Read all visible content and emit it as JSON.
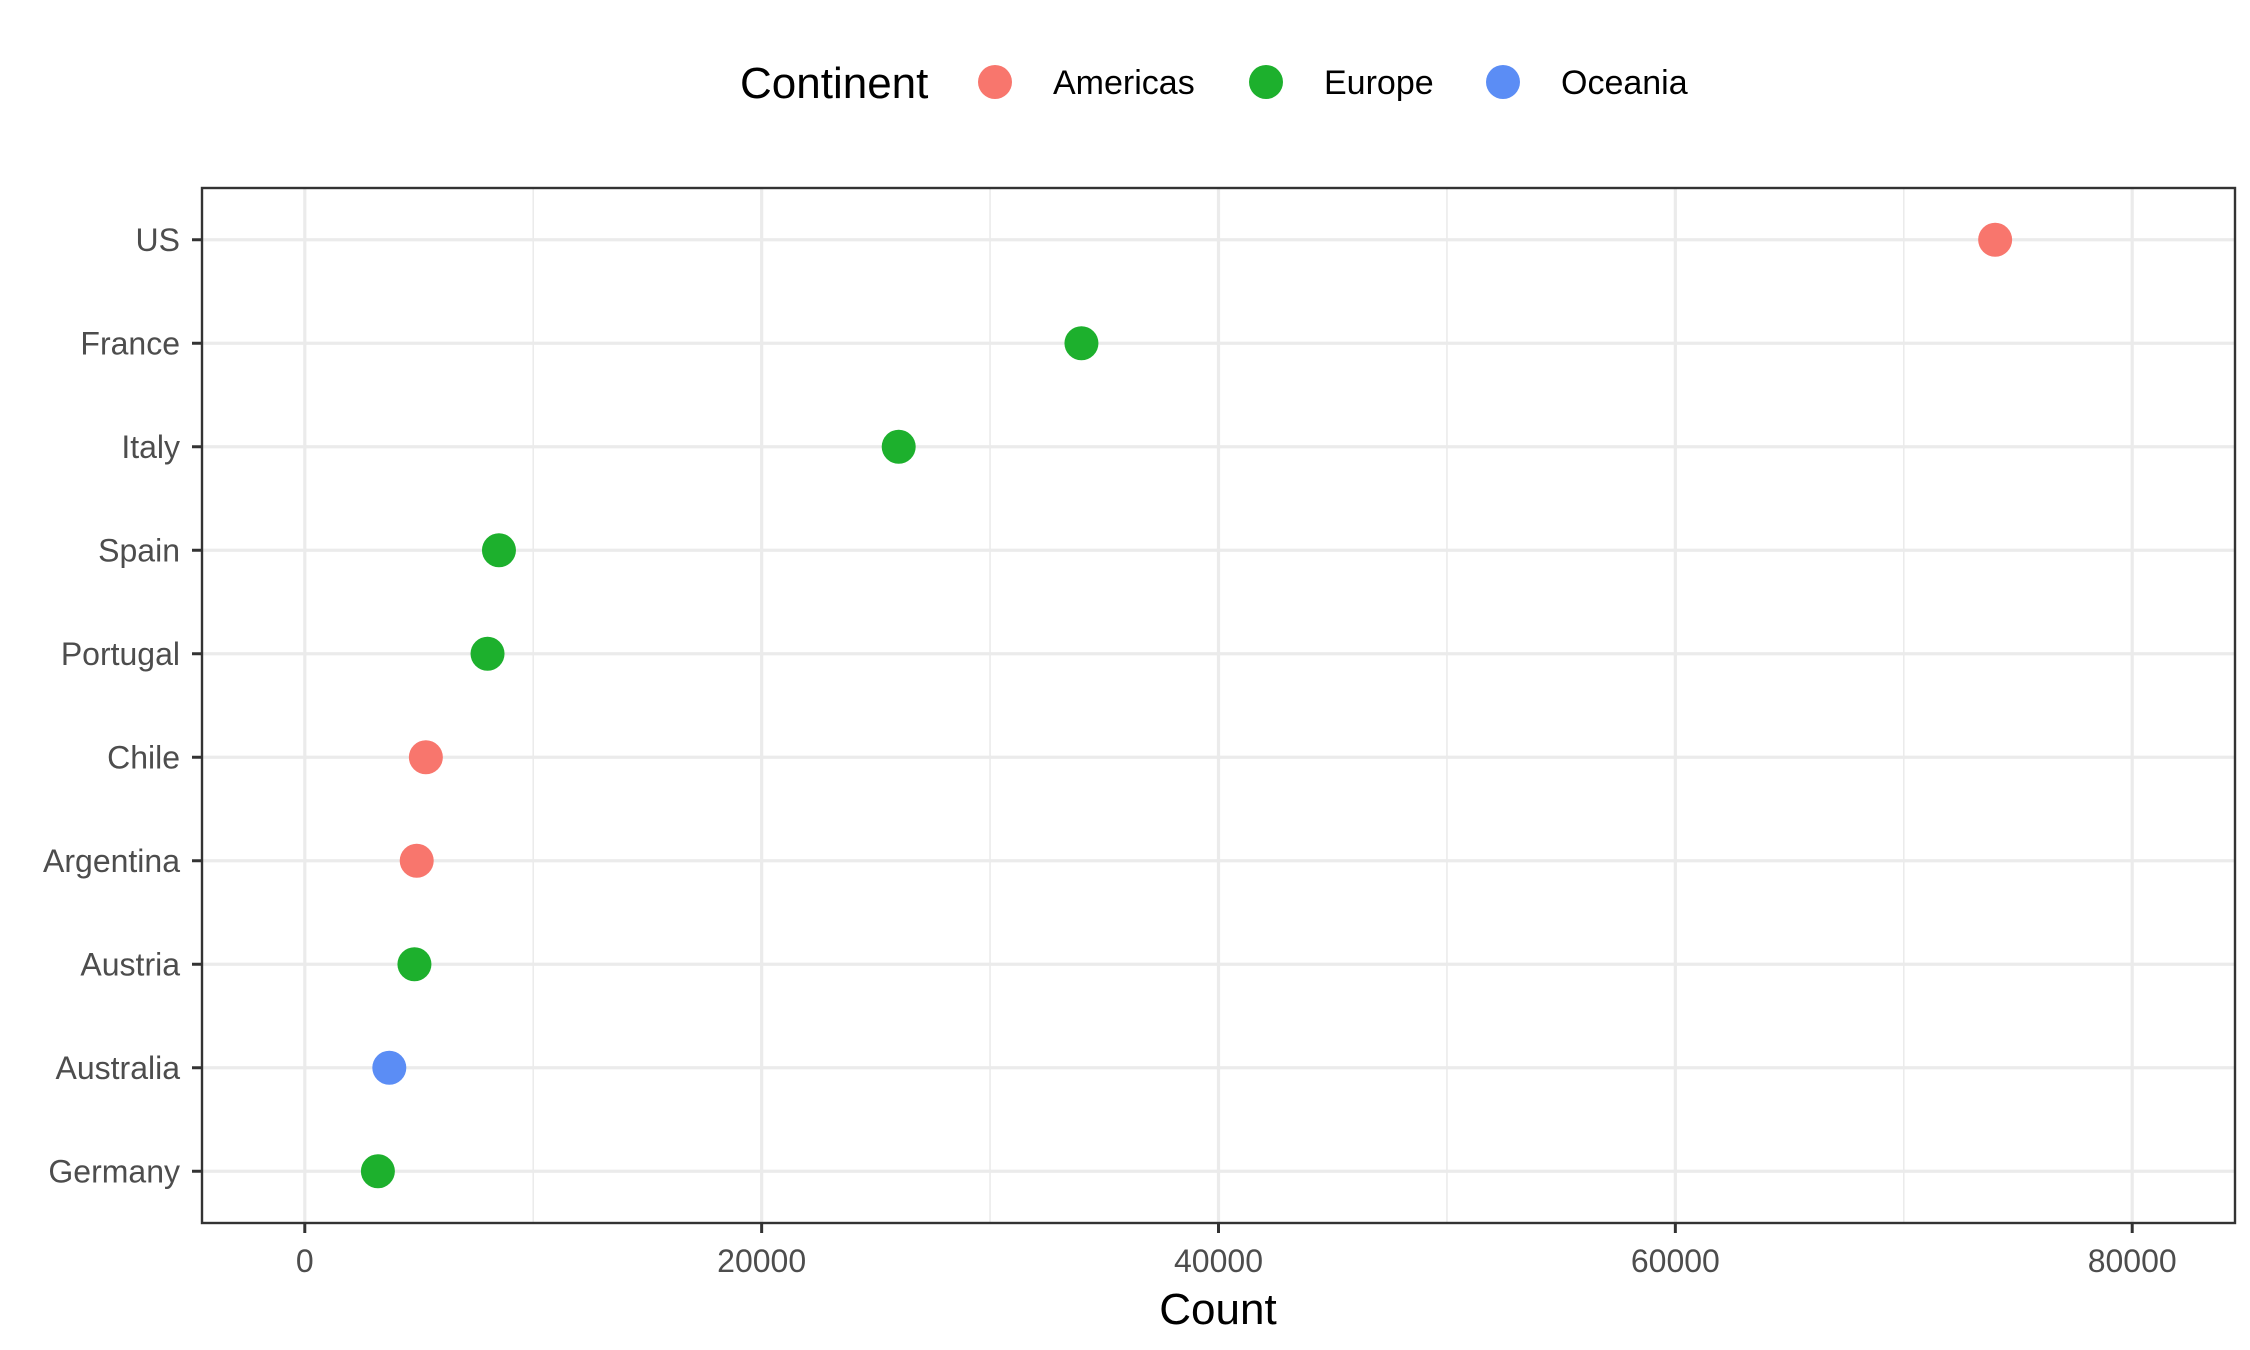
{
  "chart_data": {
    "type": "scatter",
    "title": "",
    "xlabel": "Count",
    "ylabel": "",
    "xlim": [
      -4500,
      84500
    ],
    "x_ticks": [
      0,
      20000,
      40000,
      60000,
      80000
    ],
    "x_tick_labels": [
      "0",
      "20000",
      "40000",
      "60000",
      "80000"
    ],
    "x_minor": [
      10000,
      30000,
      50000,
      70000
    ],
    "categories": [
      "US",
      "France",
      "Italy",
      "Spain",
      "Portugal",
      "Chile",
      "Argentina",
      "Austria",
      "Australia",
      "Germany"
    ],
    "points": [
      {
        "country": "US",
        "value": 74000,
        "continent": "Americas"
      },
      {
        "country": "France",
        "value": 34000,
        "continent": "Europe"
      },
      {
        "country": "Italy",
        "value": 26000,
        "continent": "Europe"
      },
      {
        "country": "Spain",
        "value": 8500,
        "continent": "Europe"
      },
      {
        "country": "Portugal",
        "value": 8000,
        "continent": "Europe"
      },
      {
        "country": "Chile",
        "value": 5300,
        "continent": "Americas"
      },
      {
        "country": "Argentina",
        "value": 4900,
        "continent": "Americas"
      },
      {
        "country": "Austria",
        "value": 4800,
        "continent": "Europe"
      },
      {
        "country": "Australia",
        "value": 3700,
        "continent": "Oceania"
      },
      {
        "country": "Germany",
        "value": 3200,
        "continent": "Europe"
      }
    ],
    "legend": {
      "title": "Continent",
      "position": "top",
      "entries": [
        {
          "label": "Americas",
          "color": "#F8766D"
        },
        {
          "label": "Europe",
          "color": "#1DB02D"
        },
        {
          "label": "Oceania",
          "color": "#5B8DF5"
        }
      ]
    },
    "grid": true
  }
}
